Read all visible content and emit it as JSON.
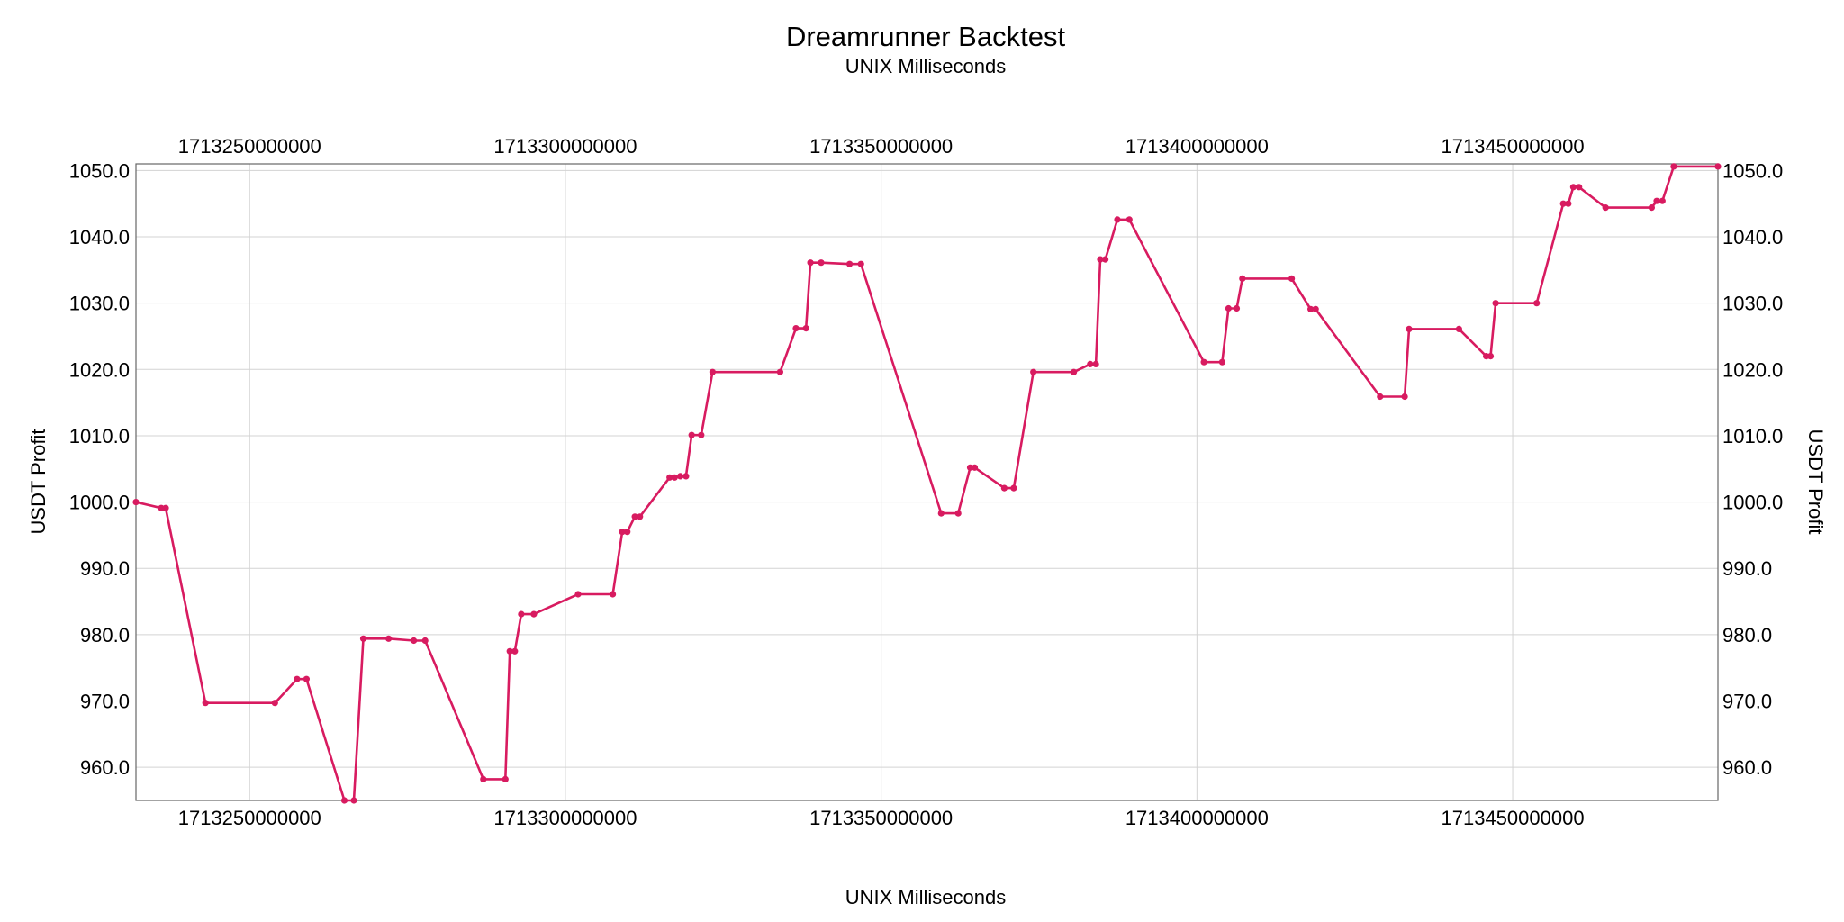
{
  "chart_data": {
    "type": "line",
    "title": "Dreamrunner Backtest",
    "subtitle": "UNIX Milliseconds",
    "xlabel": "UNIX Milliseconds",
    "ylabel": "USDT Profit",
    "ylabel_right": "USDT Profit",
    "xlim": [
      1713232000000,
      1713482500000
    ],
    "ylim": [
      955.0,
      1051.0
    ],
    "x_ticks": [
      1713250000000,
      1713300000000,
      1713350000000,
      1713400000000,
      1713450000000
    ],
    "x_tick_labels": [
      "1713250000000",
      "1713300000000",
      "1713350000000",
      "1713400000000",
      "1713450000000"
    ],
    "y_ticks": [
      960,
      970,
      980,
      990,
      1000,
      1010,
      1020,
      1030,
      1040,
      1050
    ],
    "y_tick_labels": [
      "960.0",
      "970.0",
      "980.0",
      "990.0",
      "1000.0",
      "1010.0",
      "1020.0",
      "1030.0",
      "1040.0",
      "1050.0"
    ],
    "grid": true,
    "line_color": "#d81b60",
    "series": [
      {
        "x": [
          1713232000000,
          1713236000000,
          1713236700000,
          1713243000000,
          1713254000000,
          1713257500000,
          1713259000000,
          1713265000000,
          1713266500000,
          1713268000000,
          1713272000000,
          1713276000000,
          1713277800000,
          1713287000000,
          1713290500000,
          1713291200000,
          1713292000000,
          1713293000000,
          1713295000000,
          1713302000000,
          1713307500000,
          1713309000000,
          1713309800000,
          1713311000000,
          1713311800000,
          1713316500000,
          1713317300000,
          1713318200000,
          1713319100000,
          1713320000000,
          1713321500000,
          1713323300000,
          1713334000000,
          1713336500000,
          1713338100000,
          1713338800000,
          1713340500000,
          1713345000000,
          1713346800000,
          1713359500000,
          1713362200000,
          1713364100000,
          1713364800000,
          1713369500000,
          1713371000000,
          1713374100000,
          1713380500000,
          1713383100000,
          1713384000000,
          1713384700000,
          1713385500000,
          1713387400000,
          1713389300000,
          1713401100000,
          1713404000000,
          1713405000000,
          1713406300000,
          1713407200000,
          1713415000000,
          1713418000000,
          1713418800000,
          1713429000000,
          1713432900000,
          1713433600000,
          1713441500000,
          1713445800000,
          1713446500000,
          1713447300000,
          1713453800000,
          1713458000000,
          1713458800000,
          1713459600000,
          1713460500000,
          1713464700000,
          1713472000000,
          1713472800000,
          1713473700000,
          1713475500000,
          1713482500000
        ],
        "y": [
          1000.0,
          999.1,
          999.1,
          969.7,
          969.7,
          973.3,
          973.3,
          955.0,
          955.0,
          979.4,
          979.4,
          979.1,
          979.1,
          958.2,
          958.2,
          977.5,
          977.5,
          983.1,
          983.1,
          986.1,
          986.1,
          995.5,
          995.5,
          997.8,
          997.8,
          1003.7,
          1003.7,
          1003.9,
          1003.9,
          1010.1,
          1010.1,
          1019.6,
          1019.6,
          1026.2,
          1026.2,
          1036.1,
          1036.1,
          1035.9,
          1035.9,
          998.3,
          998.3,
          1005.2,
          1005.2,
          1002.1,
          1002.1,
          1019.6,
          1019.6,
          1020.8,
          1020.8,
          1036.6,
          1036.6,
          1042.6,
          1042.6,
          1021.1,
          1021.1,
          1029.2,
          1029.2,
          1033.7,
          1033.7,
          1029.1,
          1029.1,
          1015.9,
          1015.9,
          1026.1,
          1026.1,
          1022.0,
          1022.0,
          1030.0,
          1030.0,
          1045.0,
          1045.0,
          1047.5,
          1047.5,
          1044.4,
          1044.4,
          1045.4,
          1045.4,
          1050.6,
          1050.6
        ]
      }
    ]
  }
}
